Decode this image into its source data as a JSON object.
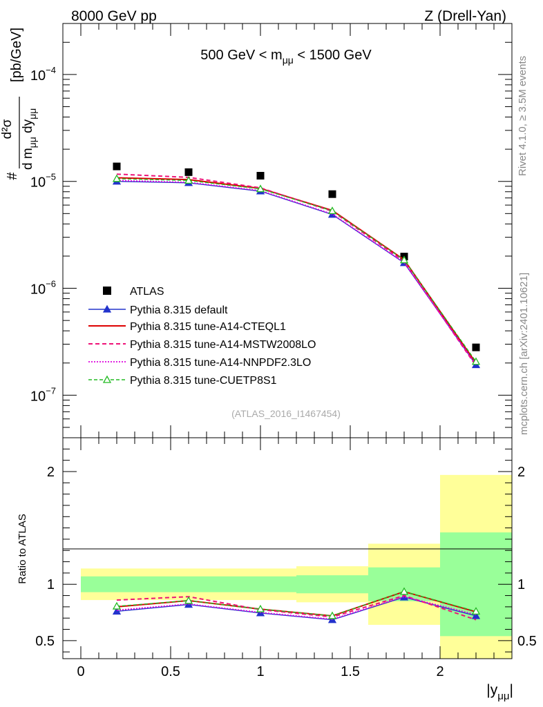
{
  "header": {
    "left": "8000 GeV pp",
    "right": "Z (Drell-Yan)"
  },
  "side_text": {
    "rivet": "Rivet 4.1.0, ≥ 3.5M events",
    "mcplots": "mcplots.cern.ch [arXiv:2401.10621]"
  },
  "colors": {
    "atlas": "#000000",
    "default": "#2233cc",
    "cteql1": "#dd0000",
    "mstw": "#ee1177",
    "nnpdf": "#dd00dd",
    "cuetp8s1": "#22bb22",
    "band_outer": "#ffff99",
    "band_inner": "#99ff99"
  },
  "chart_data": [
    {
      "type": "scatter",
      "panel": "main",
      "title": "500 GeV < m_μμ < 1500 GeV",
      "title_parts": {
        "pre": "500 GeV < m",
        "sub": "μμ",
        "post": " < 1500 GeV"
      },
      "ylabel": "d²σ / d m_μμ dy_μμ [pb/GeV]",
      "ylabel_parts": {
        "unit": "[pb/GeV]",
        "d2sigma": "d²σ",
        "dm": "d m",
        "mu": "μμ",
        "dy": " dy"
      },
      "yscale": "log",
      "ylim": [
        4e-08,
        0.0003
      ],
      "xlim": [
        -0.1,
        2.4
      ],
      "y_ticks": [
        {
          "v": 1e-07,
          "m": "10",
          "e": "−7"
        },
        {
          "v": 1e-06,
          "m": "10",
          "e": "−6"
        },
        {
          "v": 1e-05,
          "m": "10",
          "e": "−5"
        },
        {
          "v": 0.0001,
          "m": "10",
          "e": "−4"
        }
      ],
      "watermark": "(ATLAS_2016_I1467454)",
      "legend_position": "center-left",
      "x": [
        0.2,
        0.6,
        1.0,
        1.4,
        1.8,
        2.2
      ],
      "series": [
        {
          "name": "ATLAS",
          "key": "atlas",
          "style": "square",
          "values": [
            1.38e-05,
            1.22e-05,
            1.13e-05,
            7.6e-06,
            1.98e-06,
            2.8e-07
          ]
        },
        {
          "name": "Pythia 8.315 default",
          "key": "default",
          "style": "solid-tri",
          "values": [
            1e-05,
            9.7e-06,
            8.1e-06,
            4.9e-06,
            1.73e-06,
            1.92e-07
          ]
        },
        {
          "name": "Pythia 8.315 tune-A14-CTEQL1",
          "key": "cteql1",
          "style": "solid",
          "values": [
            1.08e-05,
            1.04e-05,
            8.6e-06,
            5.35e-06,
            1.85e-06,
            2e-07
          ]
        },
        {
          "name": "Pythia 8.315 tune-A14-MSTW2008LO",
          "key": "mstw",
          "style": "dashed",
          "values": [
            1.17e-05,
            1.09e-05,
            8.7e-06,
            5.25e-06,
            1.79e-06,
            1.88e-07
          ]
        },
        {
          "name": "Pythia 8.315 tune-A14-NNPDF2.3LO",
          "key": "nnpdf",
          "style": "dotted",
          "values": [
            1.02e-05,
            9.8e-06,
            8.2e-06,
            4.95e-06,
            1.74e-06,
            1.93e-07
          ]
        },
        {
          "name": "Pythia 8.315 tune-CUETP8S1",
          "key": "cuetp8s1",
          "style": "dashed-tri",
          "values": [
            1.06e-05,
            1.02e-05,
            8.5e-06,
            5.3e-06,
            1.84e-06,
            2.06e-07
          ]
        }
      ]
    },
    {
      "type": "line",
      "panel": "ratio",
      "ylabel": "Ratio to ATLAS",
      "xlabel": "|y_μμ|",
      "xlabel_parts": {
        "pre": "|y",
        "sub": "μμ",
        "post": "|"
      },
      "ylim": [
        0.34,
        2.3
      ],
      "xlim": [
        -0.1,
        2.4
      ],
      "y_ticks": [
        {
          "v": 0.5,
          "label": "0.5"
        },
        {
          "v": 1,
          "label": "1"
        },
        {
          "v": 2,
          "label": "2"
        }
      ],
      "x_ticks": [
        {
          "v": 0,
          "label": "0"
        },
        {
          "v": 0.5,
          "label": "0.5"
        },
        {
          "v": 1,
          "label": "1"
        },
        {
          "v": 1.5,
          "label": "1.5"
        },
        {
          "v": 2,
          "label": "2"
        }
      ],
      "bands": [
        {
          "x0": 0.0,
          "x1": 0.4,
          "inner": [
            0.93,
            1.07
          ],
          "outer": [
            0.86,
            1.14
          ]
        },
        {
          "x0": 0.4,
          "x1": 0.8,
          "inner": [
            0.93,
            1.07
          ],
          "outer": [
            0.86,
            1.14
          ]
        },
        {
          "x0": 0.8,
          "x1": 1.2,
          "inner": [
            0.93,
            1.07
          ],
          "outer": [
            0.86,
            1.14
          ]
        },
        {
          "x0": 1.2,
          "x1": 1.6,
          "inner": [
            0.92,
            1.08
          ],
          "outer": [
            0.84,
            1.16
          ]
        },
        {
          "x0": 1.6,
          "x1": 2.0,
          "inner": [
            0.85,
            1.15
          ],
          "outer": [
            0.64,
            1.36
          ]
        },
        {
          "x0": 2.0,
          "x1": 2.4,
          "inner": [
            0.54,
            1.46
          ],
          "outer": [
            0.34,
            1.97
          ]
        }
      ],
      "x": [
        0.2,
        0.6,
        1.0,
        1.4,
        1.8,
        2.2
      ],
      "series": [
        {
          "name": "Pythia 8.315 default",
          "key": "default",
          "style": "solid-tri",
          "values": [
            0.76,
            0.82,
            0.745,
            0.685,
            0.885,
            0.72
          ]
        },
        {
          "name": "Pythia 8.315 tune-A14-CTEQL1",
          "key": "cteql1",
          "style": "solid",
          "values": [
            0.8,
            0.855,
            0.78,
            0.72,
            0.935,
            0.755
          ]
        },
        {
          "name": "Pythia 8.315 tune-A14-MSTW2008LO",
          "key": "mstw",
          "style": "dashed",
          "values": [
            0.86,
            0.89,
            0.775,
            0.71,
            0.9,
            0.685
          ]
        },
        {
          "name": "Pythia 8.315 tune-A14-NNPDF2.3LO",
          "key": "nnpdf",
          "style": "dotted",
          "values": [
            0.77,
            0.825,
            0.75,
            0.69,
            0.89,
            0.73
          ]
        },
        {
          "name": "Pythia 8.315 tune-CUETP8S1",
          "key": "cuetp8s1",
          "style": "dashed-tri",
          "values": [
            0.805,
            0.855,
            0.78,
            0.72,
            0.935,
            0.76
          ]
        }
      ]
    }
  ]
}
